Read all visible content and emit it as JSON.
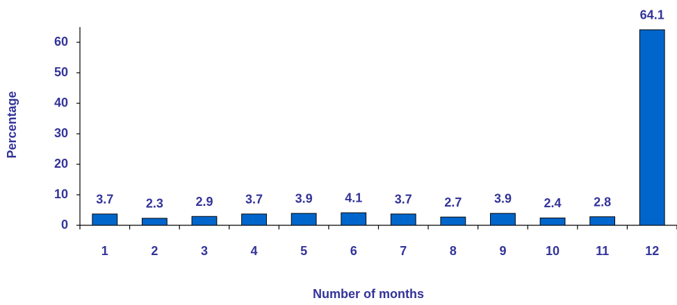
{
  "chart_data": {
    "type": "bar",
    "categories": [
      "1",
      "2",
      "3",
      "4",
      "5",
      "6",
      "7",
      "8",
      "9",
      "10",
      "11",
      "12"
    ],
    "values": [
      3.7,
      2.3,
      2.9,
      3.7,
      3.9,
      4.1,
      3.7,
      2.7,
      3.9,
      2.4,
      2.8,
      64.1
    ],
    "color": "#0066cc",
    "xlabel": "Number of months",
    "ylabel": "Percentage",
    "ylim": [
      0,
      65
    ],
    "yticks": [
      0,
      10,
      20,
      30,
      40,
      50,
      60
    ],
    "grid": false
  }
}
